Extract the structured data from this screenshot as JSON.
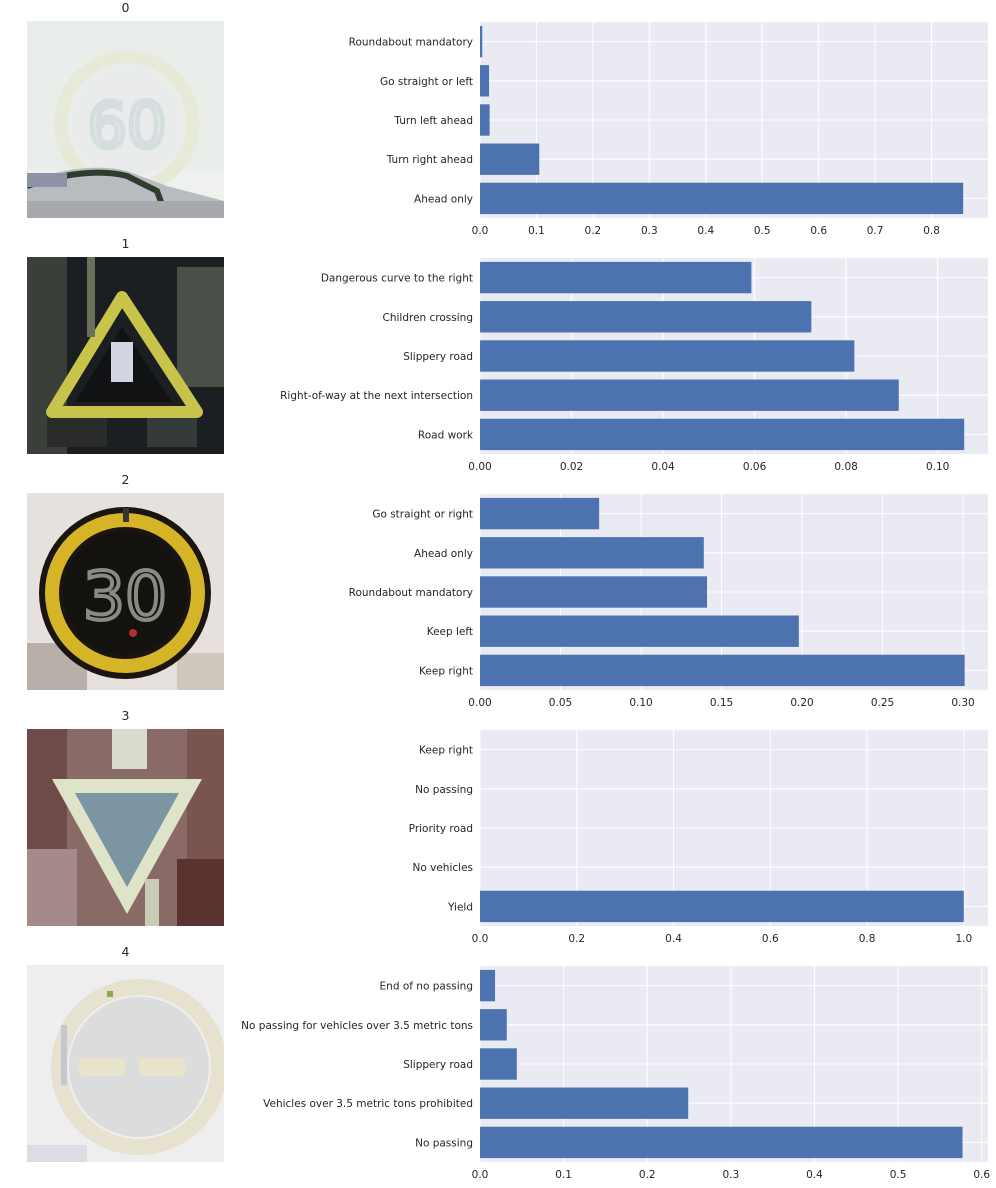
{
  "chart_data": [
    {
      "type": "bar",
      "orientation": "horizontal",
      "panel_title": "0",
      "image": "speed limit 60 sign thumbnail",
      "categories": [
        "Ahead only",
        "Turn right ahead",
        "Turn left ahead",
        "Go straight or left",
        "Roundabout mandatory"
      ],
      "values": [
        0.856,
        0.105,
        0.017,
        0.016,
        0.004
      ],
      "xlim": [
        0,
        0.9
      ],
      "xticks": [
        0.0,
        0.1,
        0.2,
        0.3,
        0.4,
        0.5,
        0.6,
        0.7,
        0.8
      ],
      "xtick_labels": [
        "0.0",
        "0.1",
        "0.2",
        "0.3",
        "0.4",
        "0.5",
        "0.6",
        "0.7",
        "0.8"
      ],
      "grid": true,
      "bar_color": "#4C72B0"
    },
    {
      "type": "bar",
      "orientation": "horizontal",
      "panel_title": "1",
      "image": "warning triangle sign thumbnail",
      "categories": [
        "Road work",
        "Right-of-way at the next intersection",
        "Slippery road",
        "Children crossing",
        "Dangerous curve to the right"
      ],
      "values": [
        0.1058,
        0.0915,
        0.0818,
        0.0724,
        0.0593
      ],
      "xlim": [
        0,
        0.111
      ],
      "xticks": [
        0.0,
        0.02,
        0.04,
        0.06,
        0.08,
        0.1
      ],
      "xtick_labels": [
        "0.00",
        "0.02",
        "0.04",
        "0.06",
        "0.08",
        "0.10"
      ],
      "grid": true,
      "bar_color": "#4C72B0"
    },
    {
      "type": "bar",
      "orientation": "horizontal",
      "panel_title": "2",
      "image": "speed limit 30 sign thumbnail",
      "categories": [
        "Keep right",
        "Keep left",
        "Roundabout mandatory",
        "Ahead only",
        "Go straight or right"
      ],
      "values": [
        0.301,
        0.198,
        0.141,
        0.139,
        0.074
      ],
      "xlim": [
        0,
        0.3155
      ],
      "xticks": [
        0.0,
        0.05,
        0.1,
        0.15,
        0.2,
        0.25,
        0.3
      ],
      "xtick_labels": [
        "0.00",
        "0.05",
        "0.10",
        "0.15",
        "0.20",
        "0.25",
        "0.30"
      ],
      "grid": true,
      "bar_color": "#4C72B0"
    },
    {
      "type": "bar",
      "orientation": "horizontal",
      "panel_title": "3",
      "image": "yield sign thumbnail",
      "categories": [
        "Yield",
        "No vehicles",
        "Priority road",
        "No passing",
        "Keep right"
      ],
      "values": [
        1.0,
        0.0,
        0.0,
        0.0,
        0.0
      ],
      "xlim": [
        0,
        1.05
      ],
      "xticks": [
        0.0,
        0.2,
        0.4,
        0.6,
        0.8,
        1.0
      ],
      "xtick_labels": [
        "0.0",
        "0.2",
        "0.4",
        "0.6",
        "0.8",
        "1.0"
      ],
      "grid": true,
      "bar_color": "#4C72B0"
    },
    {
      "type": "bar",
      "orientation": "horizontal",
      "panel_title": "4",
      "image": "no passing sign thumbnail",
      "categories": [
        "No passing",
        "Vehicles over 3.5 metric tons prohibited",
        "Slippery road",
        "No passing for vehicles over 3.5 metric tons",
        "End of no passing"
      ],
      "values": [
        0.577,
        0.249,
        0.044,
        0.032,
        0.018
      ],
      "xlim": [
        0,
        0.6075
      ],
      "xticks": [
        0.0,
        0.1,
        0.2,
        0.3,
        0.4,
        0.5,
        0.6
      ],
      "xtick_labels": [
        "0.0",
        "0.1",
        "0.2",
        "0.3",
        "0.4",
        "0.5",
        "0.6"
      ],
      "grid": true,
      "bar_color": "#4C72B0"
    }
  ],
  "style": {
    "plot_background": "#EAEAF2",
    "grid_color": "#FFFFFF",
    "text_color": "#262626"
  }
}
